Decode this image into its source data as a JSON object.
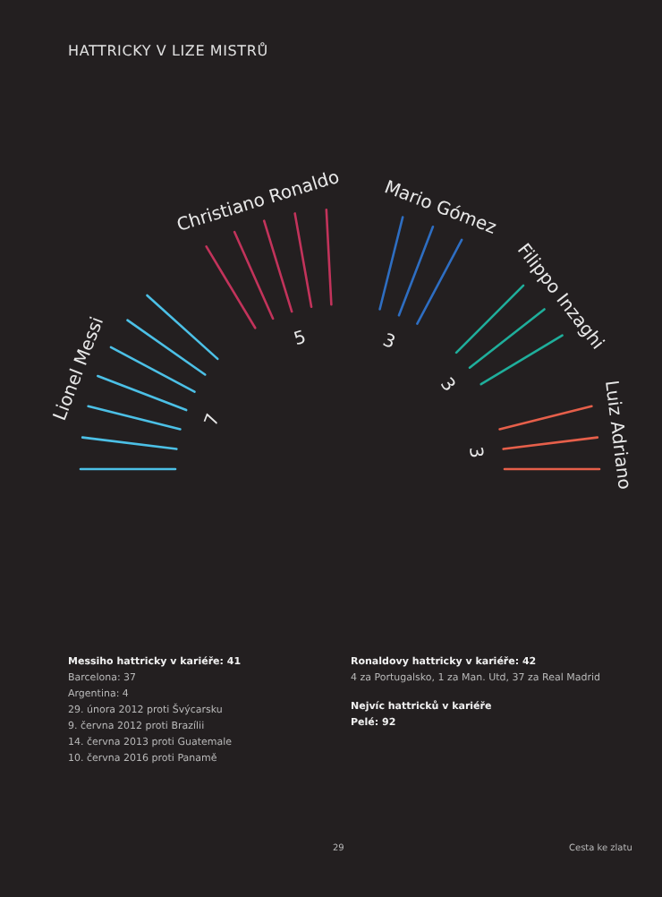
{
  "chart_data": {
    "type": "other",
    "title": "HATTRICKY V LIZE MISTRŮ",
    "categories": [
      "Lionel Messi",
      "Christiano Ronaldo",
      "Mario Gómez",
      "Filippo Inzaghi",
      "Luiz Adriano"
    ],
    "values": [
      7,
      5,
      3,
      3,
      3
    ],
    "colors": [
      "#4cc0e6",
      "#c2335b",
      "#2e6ec2",
      "#1fae9b",
      "#e65f4a"
    ],
    "data_labels": true,
    "annotations": [
      "Messiho hattricky v kariéře: 41",
      "Barcelona: 37",
      "Argentina: 4",
      "29. února 2012 proti Švýcarsku",
      "9. června 2012 proti Brazílii",
      "14. června 2013 proti Guatemale",
      "10. června 2016 proti Panamě",
      "Ronaldovy hattricky v kariéře: 42",
      "4 za Portugalsko, 1 za Man. Utd, 37 za Real Madrid",
      "Nejvíc hattricků v kariéře",
      "Pelé: 92",
      "29",
      "Cesta ke zlatu"
    ]
  }
}
